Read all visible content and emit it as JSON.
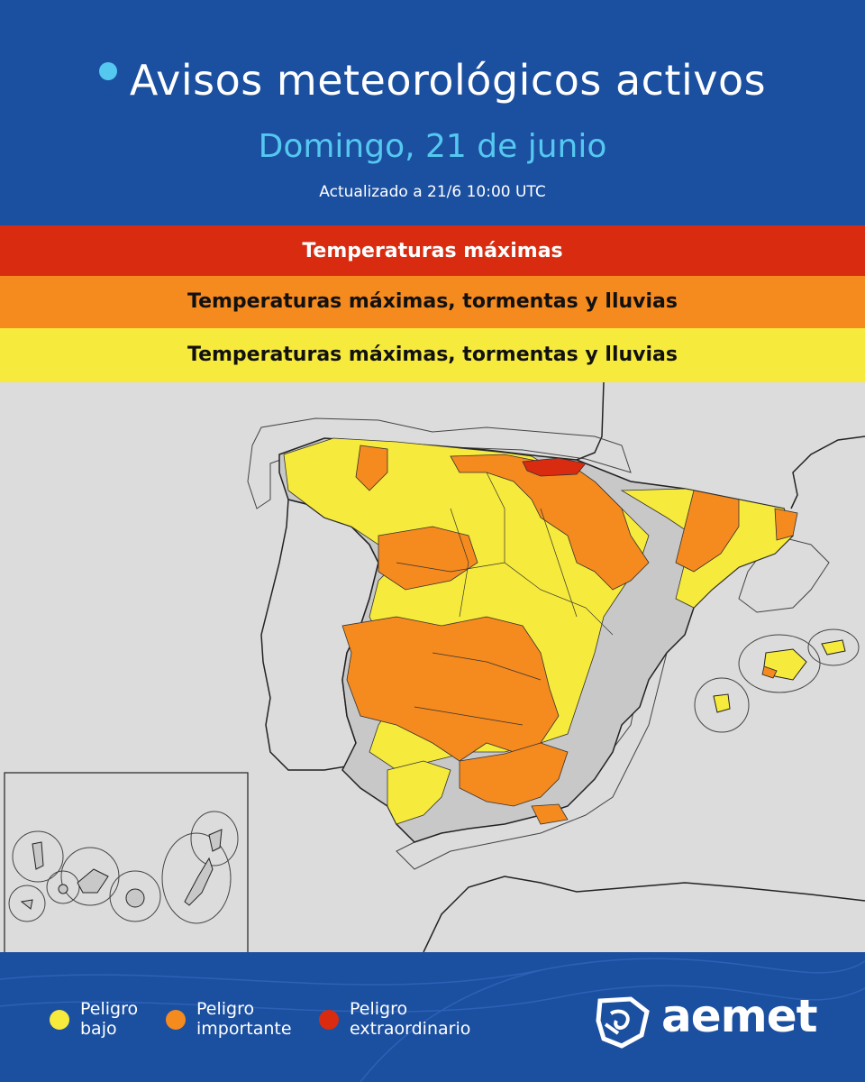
{
  "header": {
    "title": "Avisos meteorológicos activos",
    "date": "Domingo, 21 de junio",
    "updated": "Actualizado a 21/6  10:00 UTC"
  },
  "bands": {
    "red": "Temperaturas máximas",
    "orange": "Temperaturas máximas, tormentas y lluvias",
    "yellow": "Temperaturas máximas, tormentas y lluvias"
  },
  "legend": {
    "low": "Peligro\nbajo",
    "important": "Peligro\nimportante",
    "extraordinary": "Peligro\nextraordinario"
  },
  "brand": "aemet",
  "colors": {
    "background": "#1b4fa0",
    "accent": "#55c8f0",
    "red": "#d92b0f",
    "orange": "#f58a1f",
    "yellow": "#f6ea3c",
    "unaffected": "#c8c8c8"
  }
}
